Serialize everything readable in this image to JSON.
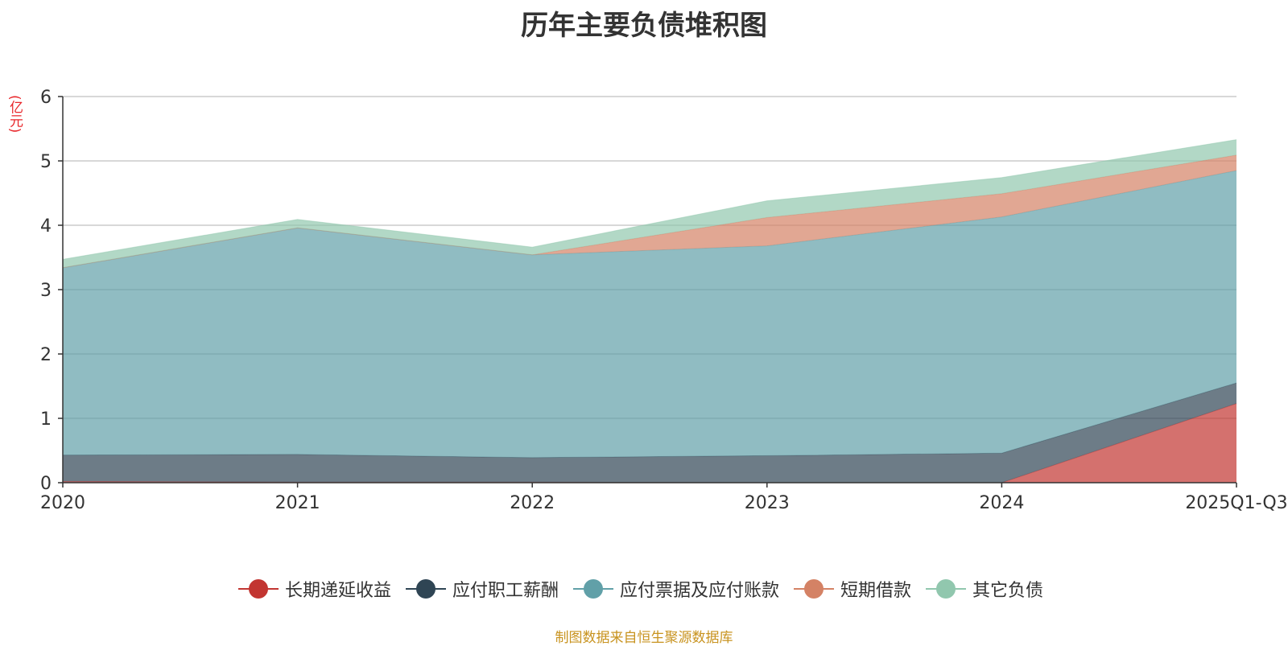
{
  "chart_data": {
    "type": "area",
    "stacked": true,
    "title": "历年主要负债堆积图",
    "ylabel": "(亿元)",
    "xlabel": "",
    "ylim": [
      0,
      6
    ],
    "yticks": [
      0,
      1,
      2,
      3,
      4,
      5,
      6
    ],
    "categories": [
      "2020",
      "2021",
      "2022",
      "2023",
      "2024",
      "2025Q1-Q3"
    ],
    "series": [
      {
        "name": "长期递延收益",
        "color": "#c23531",
        "values": [
          0.02,
          0.01,
          0.01,
          0.0,
          0.0,
          1.23
        ]
      },
      {
        "name": "应付职工薪酬",
        "color": "#2f4554",
        "values": [
          0.41,
          0.43,
          0.38,
          0.42,
          0.46,
          0.32
        ]
      },
      {
        "name": "应付票据及应付账款",
        "color": "#61a0a8",
        "values": [
          2.91,
          3.52,
          3.15,
          3.26,
          3.67,
          3.3
        ]
      },
      {
        "name": "短期借款",
        "color": "#d48265",
        "values": [
          0.0,
          0.0,
          0.0,
          0.44,
          0.36,
          0.24
        ]
      },
      {
        "name": "其它负债",
        "color": "#91c7ae",
        "values": [
          0.13,
          0.13,
          0.12,
          0.26,
          0.25,
          0.24
        ]
      }
    ],
    "legend_position": "bottom",
    "grid": true
  },
  "source_text": "制图数据来自恒生聚源数据库"
}
